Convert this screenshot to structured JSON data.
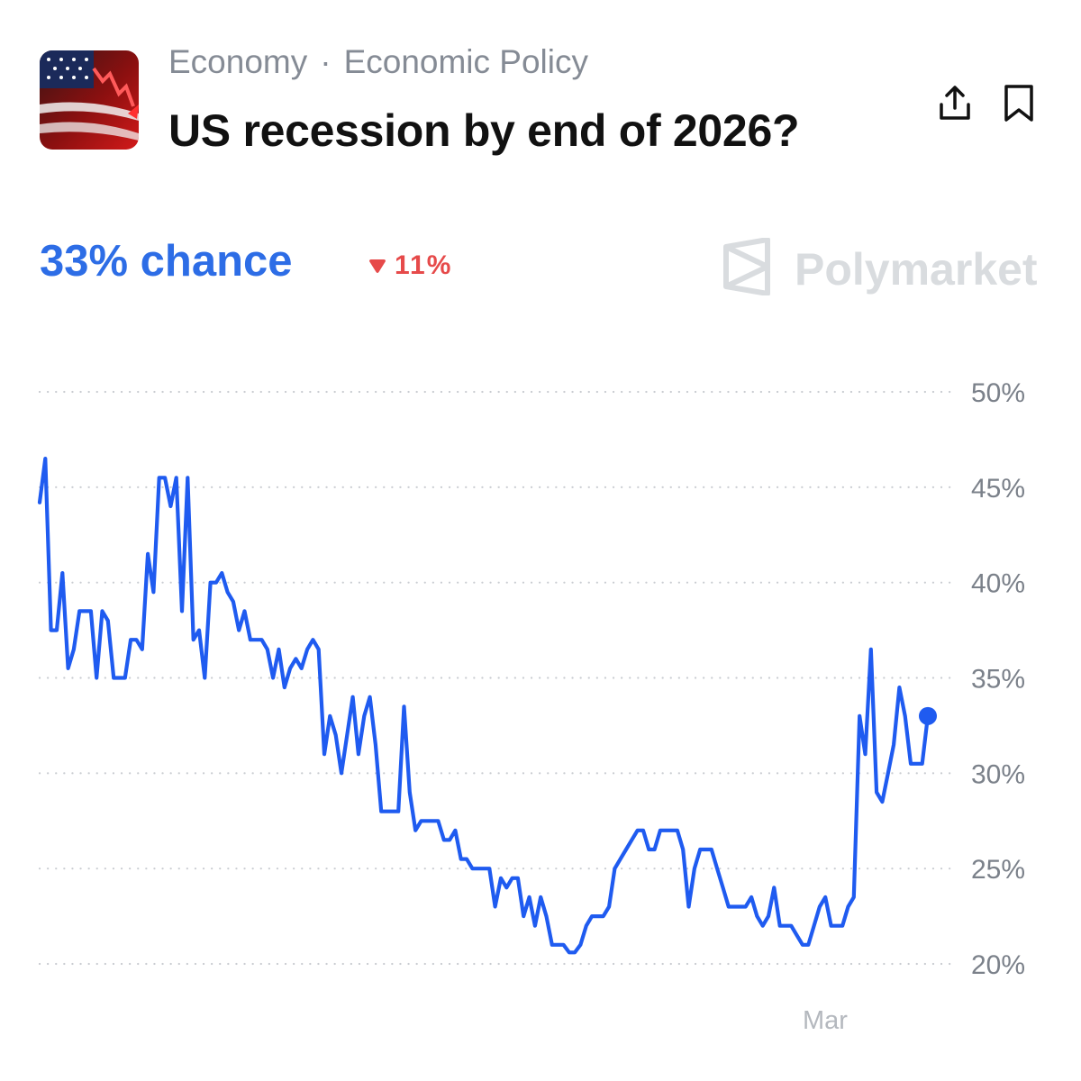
{
  "header": {
    "category": "Economy",
    "separator": "·",
    "subcategory": "Economic Policy",
    "title": "US recession by end of 2026?",
    "thumbnail_icon": "us-flag-market-crash-image",
    "share_icon": "share-icon",
    "bookmark_icon": "bookmark-icon"
  },
  "stats": {
    "chance": "33% chance",
    "change": "11%",
    "change_direction": "down",
    "brand": "Polymarket",
    "brand_icon": "polymarket-logo-icon"
  },
  "colors": {
    "accent": "#2d6de6",
    "line": "#1f5bf0",
    "negative": "#e64a4a",
    "muted": "#858b95",
    "grid": "#c9ccd1"
  },
  "chart_data": {
    "type": "line",
    "title": "",
    "xlabel": "",
    "ylabel": "",
    "ylim": [
      20,
      50
    ],
    "y_ticks": [
      "50%",
      "45%",
      "40%",
      "35%",
      "30%",
      "25%",
      "20%"
    ],
    "y_tick_values": [
      50,
      45,
      40,
      35,
      30,
      25,
      20
    ],
    "x_tick_labels": [
      "Mar"
    ],
    "x_tick_index": [
      270
    ],
    "grid": true,
    "last_value_marker": true,
    "series": [
      {
        "values": [
          44.2,
          46.5,
          37.5,
          37.5,
          40.5,
          35.5,
          36.5,
          38.5,
          38.5,
          38.5,
          35,
          38.5,
          38,
          35,
          35,
          35,
          37,
          37,
          36.5,
          41.5,
          39.5,
          45.5,
          45.5,
          44,
          45.5,
          38.5,
          45.5,
          37,
          37.5,
          35,
          40,
          40,
          40.5,
          39.5,
          39,
          37.5,
          38.5,
          37,
          37,
          37,
          36.5,
          35,
          36.5,
          34.5,
          35.5,
          36,
          35.5,
          36.5,
          37,
          36.5,
          31,
          33,
          32,
          30,
          32,
          34,
          31,
          33,
          34,
          31.5,
          28,
          28,
          28,
          28,
          33.5,
          29,
          27,
          27.5,
          27.5,
          27.5,
          27.5,
          26.5,
          26.5,
          27,
          25.5,
          25.5,
          25,
          25,
          25,
          25,
          23,
          24.5,
          24,
          24.5,
          24.5,
          22.5,
          23.5,
          22,
          23.5,
          22.5,
          21,
          21,
          21,
          20.6,
          20.6,
          21,
          22,
          22.5,
          22.5,
          22.5,
          23,
          25,
          25.5,
          26,
          26.5,
          27,
          27,
          26,
          26,
          27,
          27,
          27,
          27,
          26,
          23,
          25,
          26,
          26,
          26,
          25,
          24,
          23,
          23,
          23,
          23,
          23.5,
          22.5,
          22,
          22.5,
          24,
          22,
          22,
          22,
          21.5,
          21,
          21,
          22,
          23,
          23.5,
          22,
          22,
          22,
          23,
          23.5,
          33,
          31,
          36.5,
          29,
          28.5,
          30,
          31.5,
          34.5,
          33,
          30.5,
          30.5,
          30.5,
          33
        ]
      }
    ]
  }
}
